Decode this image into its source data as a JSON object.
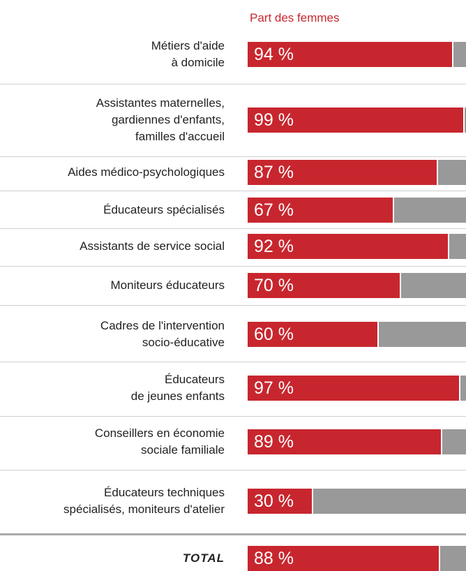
{
  "chart_data": {
    "type": "bar_share",
    "title": "Part des femmes",
    "color": "#c8262e",
    "rest_color": "#999999",
    "xlim": [
      0,
      100
    ],
    "categories": [
      "Métiers d'aide\nà domicile",
      "Assistantes maternelles,\ngardiennes d'enfants,\nfamilles d'accueil",
      "Aides médico-psychologiques",
      "Éducateurs spécialisés",
      "Assistants de service social",
      "Moniteurs éducateurs",
      "Cadres de l'intervention\nsocio-éducative",
      "Éducateurs\nde jeunes enfants",
      "Conseillers en économie\nsociale familiale",
      "Éducateurs techniques\nspécialisés, moniteurs d'atelier"
    ],
    "values": [
      94,
      99,
      87,
      67,
      92,
      70,
      60,
      97,
      89,
      30
    ],
    "value_labels": [
      "94 %",
      "99 %",
      "87 %",
      "67 %",
      "92 %",
      "70 %",
      "60 %",
      "97 %",
      "89 %",
      "30 %"
    ],
    "total": {
      "label": "TOTAL",
      "value": 88,
      "value_label": "88 %"
    }
  }
}
